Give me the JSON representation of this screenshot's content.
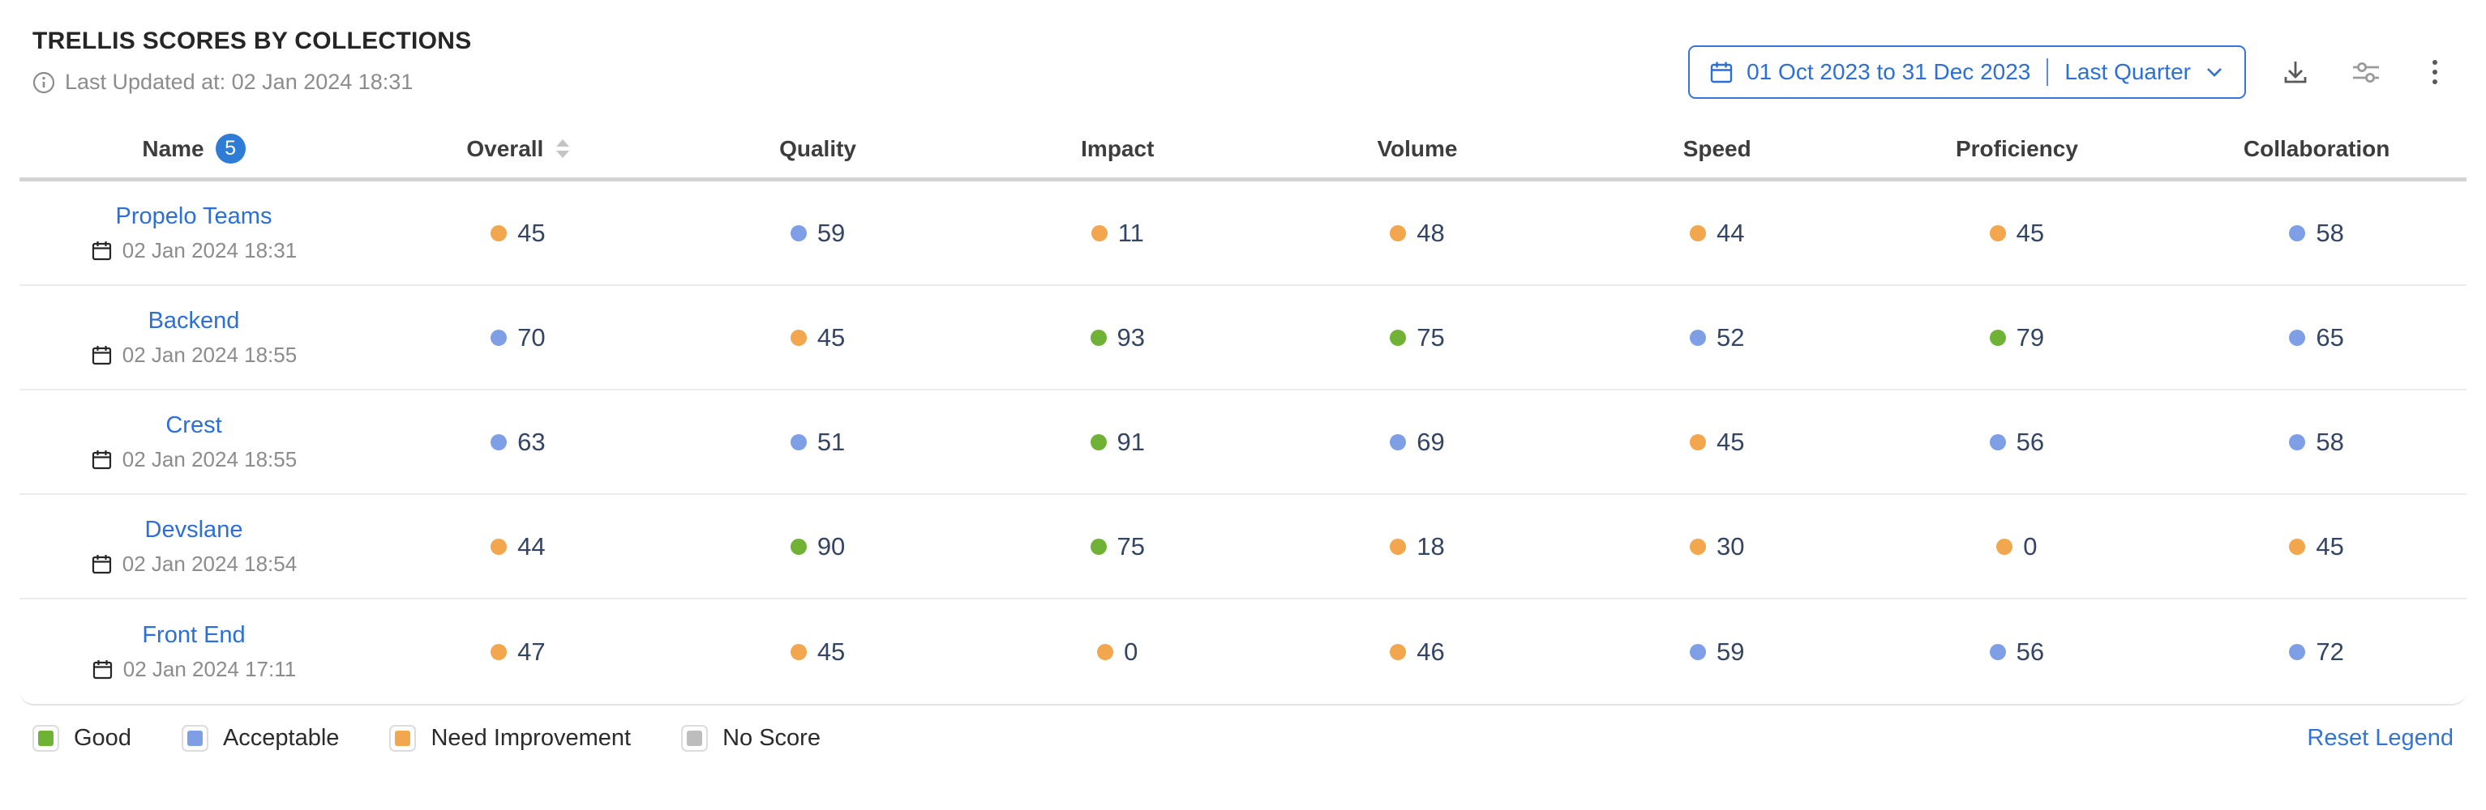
{
  "page": {
    "title": "TRELLIS SCORES BY COLLECTIONS",
    "last_updated": "Last Updated at: 02 Jan 2024 18:31"
  },
  "controls": {
    "date_range": "01 Oct 2023 to 31 Dec 2023",
    "date_preset": "Last Quarter",
    "icons": [
      "calendar-icon",
      "chevron-down-icon",
      "download-icon",
      "sliders-icon",
      "kebab-menu-icon"
    ]
  },
  "accent_color": "#2b6fd8",
  "status_colors": {
    "good": "#6fb236",
    "acceptable": "#7e9fe6",
    "need_improvement": "#f2a64d",
    "no_score": "#bdbdbd"
  },
  "table": {
    "columns": [
      {
        "label": "Name",
        "badge": "5"
      },
      {
        "label": "Overall",
        "sortable": true
      },
      {
        "label": "Quality"
      },
      {
        "label": "Impact"
      },
      {
        "label": "Volume"
      },
      {
        "label": "Speed"
      },
      {
        "label": "Proficiency"
      },
      {
        "label": "Collaboration"
      }
    ],
    "rows": [
      {
        "name": "Propelo Teams",
        "updated": "02 Jan 2024 18:31",
        "scores": [
          {
            "value": "45",
            "status": "need_improvement"
          },
          {
            "value": "59",
            "status": "acceptable"
          },
          {
            "value": "11",
            "status": "need_improvement"
          },
          {
            "value": "48",
            "status": "need_improvement"
          },
          {
            "value": "44",
            "status": "need_improvement"
          },
          {
            "value": "45",
            "status": "need_improvement"
          },
          {
            "value": "58",
            "status": "acceptable"
          }
        ]
      },
      {
        "name": "Backend",
        "updated": "02 Jan 2024 18:55",
        "scores": [
          {
            "value": "70",
            "status": "acceptable"
          },
          {
            "value": "45",
            "status": "need_improvement"
          },
          {
            "value": "93",
            "status": "good"
          },
          {
            "value": "75",
            "status": "good"
          },
          {
            "value": "52",
            "status": "acceptable"
          },
          {
            "value": "79",
            "status": "good"
          },
          {
            "value": "65",
            "status": "acceptable"
          }
        ]
      },
      {
        "name": "Crest",
        "updated": "02 Jan 2024 18:55",
        "scores": [
          {
            "value": "63",
            "status": "acceptable"
          },
          {
            "value": "51",
            "status": "acceptable"
          },
          {
            "value": "91",
            "status": "good"
          },
          {
            "value": "69",
            "status": "acceptable"
          },
          {
            "value": "45",
            "status": "need_improvement"
          },
          {
            "value": "56",
            "status": "acceptable"
          },
          {
            "value": "58",
            "status": "acceptable"
          }
        ]
      },
      {
        "name": "Devslane",
        "updated": "02 Jan 2024 18:54",
        "scores": [
          {
            "value": "44",
            "status": "need_improvement"
          },
          {
            "value": "90",
            "status": "good"
          },
          {
            "value": "75",
            "status": "good"
          },
          {
            "value": "18",
            "status": "need_improvement"
          },
          {
            "value": "30",
            "status": "need_improvement"
          },
          {
            "value": "0",
            "status": "need_improvement"
          },
          {
            "value": "45",
            "status": "need_improvement"
          }
        ]
      },
      {
        "name": "Front End",
        "updated": "02 Jan 2024 17:11",
        "scores": [
          {
            "value": "47",
            "status": "need_improvement"
          },
          {
            "value": "45",
            "status": "need_improvement"
          },
          {
            "value": "0",
            "status": "need_improvement"
          },
          {
            "value": "46",
            "status": "need_improvement"
          },
          {
            "value": "59",
            "status": "acceptable"
          },
          {
            "value": "56",
            "status": "acceptable"
          },
          {
            "value": "72",
            "status": "acceptable"
          }
        ]
      }
    ]
  },
  "legend": {
    "items": [
      {
        "label": "Good",
        "status": "good"
      },
      {
        "label": "Acceptable",
        "status": "acceptable"
      },
      {
        "label": "Need Improvement",
        "status": "need_improvement"
      },
      {
        "label": "No Score",
        "status": "no_score"
      }
    ],
    "reset_label": "Reset Legend"
  }
}
